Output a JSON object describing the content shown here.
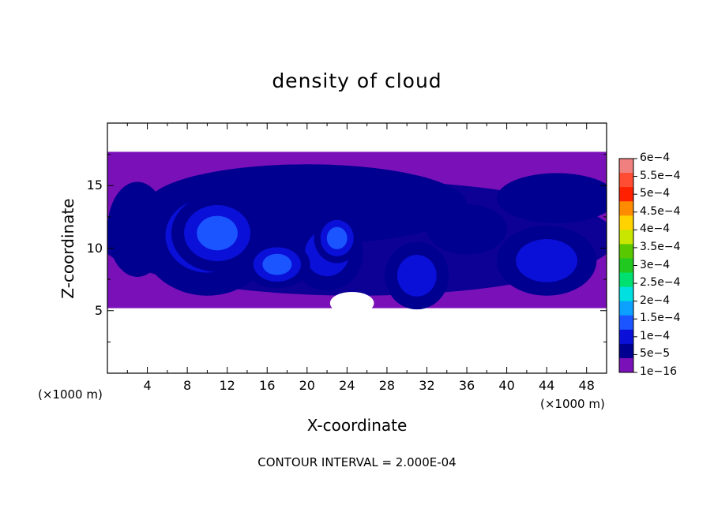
{
  "chart_data": {
    "type": "heatmap",
    "title": "density of cloud",
    "xlabel": "X-coordinate",
    "ylabel": "Z-coordinate",
    "x_unit": "(×1000 m)",
    "xlim": [
      0,
      50
    ],
    "ylim": [
      0,
      20
    ],
    "x_ticks": [
      4,
      8,
      12,
      16,
      20,
      24,
      28,
      32,
      36,
      40,
      44,
      48
    ],
    "y_ticks": [
      5,
      10,
      15
    ],
    "x_tick_labels": [
      "4",
      "8",
      "12",
      "16",
      "20",
      "24",
      "28",
      "32",
      "36",
      "40",
      "44",
      "48"
    ],
    "y_tick_labels": [
      "5",
      "10",
      "15"
    ],
    "footer": "CONTOUR INTERVAL = 2.000E-04",
    "colorbar": {
      "labels": [
        "6e−4",
        "5.5e−4",
        "5e−4",
        "4.5e−4",
        "4e−4",
        "3.5e−4",
        "3e−4",
        "2.5e−4",
        "2e−4",
        "1.5e−4",
        "1e−4",
        "5e−5",
        "1e−16"
      ],
      "colors": [
        "#f08080",
        "#ff4d33",
        "#ff2000",
        "#ff8c00",
        "#ffd200",
        "#c8e600",
        "#5ac800",
        "#20c820",
        "#00e070",
        "#00e0e0",
        "#0ca0ff",
        "#1a55ff",
        "#0a10d8",
        "#000090",
        "#7a10b8"
      ]
    },
    "cloud_layer": {
      "z_bottom": 5.2,
      "z_top": 17.7
    },
    "blobs": [
      {
        "x": 11,
        "z": 11.2,
        "rx": 4.6,
        "rz": 3.1,
        "level": 0.00016
      },
      {
        "x": 10,
        "z": 11.0,
        "rx": 6.8,
        "rz": 4.8,
        "level": 0.00011
      },
      {
        "x": 17,
        "z": 8.7,
        "rx": 3.3,
        "rz": 1.9,
        "level": 0.000135
      },
      {
        "x": 23,
        "z": 10.8,
        "rx": 2.3,
        "rz": 2.0,
        "level": 0.000155
      },
      {
        "x": 22,
        "z": 9.6,
        "rx": 3.6,
        "rz": 3.0,
        "level": 0.00011
      },
      {
        "x": 31,
        "z": 7.8,
        "rx": 3.2,
        "rz": 2.7,
        "level": 0.00012
      },
      {
        "x": 44,
        "z": 9.0,
        "rx": 5.0,
        "rz": 2.8,
        "level": 0.0001
      },
      {
        "x": 3,
        "z": 11.5,
        "rx": 3.0,
        "rz": 3.8,
        "level": 7.5e-05
      },
      {
        "x": 20,
        "z": 13.5,
        "rx": 16.0,
        "rz": 3.2,
        "level": 5e-05
      },
      {
        "x": 36,
        "z": 11.5,
        "rx": 4.0,
        "rz": 2.0,
        "level": 5e-05
      },
      {
        "x": 45,
        "z": 14.0,
        "rx": 6.0,
        "rz": 2.0,
        "level": 4.5e-05
      }
    ]
  }
}
